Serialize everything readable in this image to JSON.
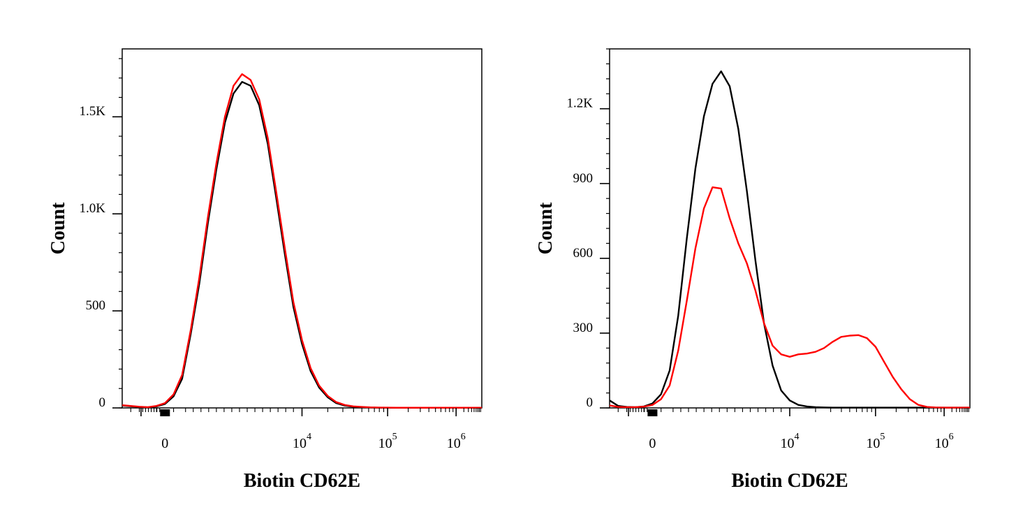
{
  "colors": {
    "control": "#000000",
    "stained": "#ff0000",
    "axis": "#000000",
    "background": "#ffffff"
  },
  "chart_data": [
    {
      "type": "line",
      "panel": "left",
      "xlabel": "Biotin CD62E",
      "ylabel": "Count",
      "x_scale": "biexponential",
      "x_ticks": [
        {
          "label": "0",
          "exp": ""
        },
        {
          "label": "10",
          "exp": "4"
        },
        {
          "label": "10",
          "exp": "5"
        },
        {
          "label": "10",
          "exp": "6"
        }
      ],
      "y_ticks": [
        "0",
        "500",
        "1.0K",
        "1.5K"
      ],
      "ylim": [
        0,
        1850
      ],
      "grid": false,
      "legend": "none",
      "series": [
        {
          "color": "#000000",
          "x": [
            -5,
            -3,
            -2,
            -1,
            0,
            1,
            2,
            3,
            4,
            5,
            6,
            7,
            8,
            9,
            10,
            11,
            12,
            13,
            14,
            15,
            16,
            17,
            18,
            19,
            20,
            21,
            22,
            23,
            24,
            25,
            27,
            29,
            31,
            33,
            35,
            37
          ],
          "y": [
            12,
            5,
            3,
            8,
            20,
            60,
            150,
            380,
            640,
            950,
            1230,
            1470,
            1620,
            1680,
            1660,
            1560,
            1360,
            1080,
            790,
            520,
            330,
            190,
            105,
            55,
            25,
            12,
            6,
            4,
            2,
            1,
            1,
            1,
            1,
            1,
            1,
            1
          ]
        },
        {
          "color": "#ff0000",
          "x": [
            -5,
            -3,
            -2,
            -1,
            0,
            1,
            2,
            3,
            4,
            5,
            6,
            7,
            8,
            9,
            10,
            11,
            12,
            13,
            14,
            15,
            16,
            17,
            18,
            19,
            20,
            21,
            22,
            23,
            24,
            25,
            27,
            29,
            31,
            33,
            35,
            37
          ],
          "y": [
            14,
            6,
            4,
            10,
            25,
            70,
            170,
            400,
            670,
            980,
            1260,
            1500,
            1660,
            1720,
            1690,
            1590,
            1390,
            1110,
            820,
            545,
            350,
            205,
            115,
            62,
            30,
            15,
            8,
            5,
            3,
            2,
            1,
            1,
            1,
            1,
            1,
            1
          ]
        }
      ]
    },
    {
      "type": "line",
      "panel": "right",
      "xlabel": "Biotin CD62E",
      "ylabel": "Count",
      "x_scale": "biexponential",
      "x_ticks": [
        {
          "label": "0",
          "exp": ""
        },
        {
          "label": "10",
          "exp": "4"
        },
        {
          "label": "10",
          "exp": "5"
        },
        {
          "label": "10",
          "exp": "6"
        }
      ],
      "y_ticks": [
        "0",
        "300",
        "600",
        "900",
        "1.2K"
      ],
      "ylim": [
        0,
        1440
      ],
      "grid": false,
      "legend": "none",
      "series": [
        {
          "color": "#000000",
          "x": [
            -5,
            -4,
            -3,
            -2,
            -1,
            0,
            1,
            2,
            3,
            4,
            5,
            6,
            7,
            8,
            9,
            10,
            11,
            12,
            13,
            14,
            15,
            16,
            17,
            18,
            19,
            20,
            21,
            22,
            23,
            24,
            26,
            28,
            30,
            32,
            34,
            36,
            37
          ],
          "y": [
            30,
            8,
            4,
            3,
            6,
            18,
            55,
            150,
            370,
            680,
            960,
            1170,
            1300,
            1350,
            1290,
            1120,
            870,
            590,
            340,
            170,
            70,
            30,
            12,
            6,
            3,
            2,
            1,
            1,
            1,
            1,
            1,
            1,
            1,
            1,
            1,
            1,
            1
          ]
        },
        {
          "color": "#ff0000",
          "x": [
            -5,
            -4,
            -3,
            -2,
            -1,
            0,
            1,
            2,
            3,
            4,
            5,
            6,
            7,
            8,
            9,
            10,
            11,
            12,
            13,
            14,
            15,
            16,
            17,
            18,
            19,
            20,
            21,
            22,
            23,
            24,
            25,
            26,
            27,
            28,
            29,
            30,
            31,
            32,
            33,
            34,
            35,
            36,
            37
          ],
          "y": [
            10,
            4,
            3,
            3,
            5,
            12,
            35,
            90,
            230,
            430,
            640,
            800,
            885,
            880,
            760,
            660,
            580,
            470,
            340,
            250,
            215,
            205,
            215,
            218,
            225,
            240,
            265,
            285,
            290,
            292,
            280,
            245,
            185,
            125,
            75,
            35,
            12,
            4,
            2,
            1,
            1,
            1,
            1
          ]
        }
      ]
    }
  ]
}
